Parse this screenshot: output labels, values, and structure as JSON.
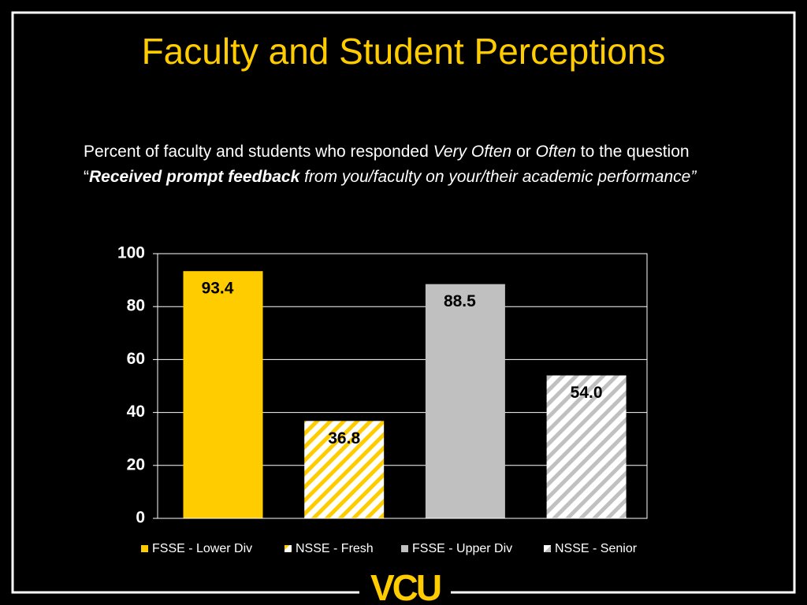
{
  "title": "Faculty and Student Perceptions",
  "subtitle": [
    "Percent of faculty and students who responded ",
    "Very Often",
    " or ",
    "Often",
    " to the question “",
    "Received prompt feedback",
    " from you/faculty on your/their academic performance”"
  ],
  "logo": "VCU",
  "chart_data": {
    "type": "bar",
    "categories": [
      null
    ],
    "series": [
      {
        "name": "FSSE - Lower Div",
        "color": "#ffcc00",
        "values": [
          93.4
        ],
        "value_labels": [
          "93.4"
        ]
      },
      {
        "name": "NSSE - Fresh",
        "color": "#ffcc00",
        "hatch": true,
        "values": [
          36.8
        ],
        "value_labels": [
          "36.8"
        ]
      },
      {
        "name": "FSSE - Upper Div",
        "color": "#c0c0c0",
        "values": [
          88.5
        ],
        "value_labels": [
          "88.5"
        ]
      },
      {
        "name": "NSSE - Senior",
        "color": "#c0c0c0",
        "hatch": true,
        "values": [
          54.0
        ],
        "value_labels": [
          "54.0"
        ]
      }
    ],
    "ylim": [
      0,
      100
    ],
    "yticks": [
      0,
      20,
      40,
      60,
      80,
      100
    ],
    "grid": true,
    "legend": "bottom"
  }
}
